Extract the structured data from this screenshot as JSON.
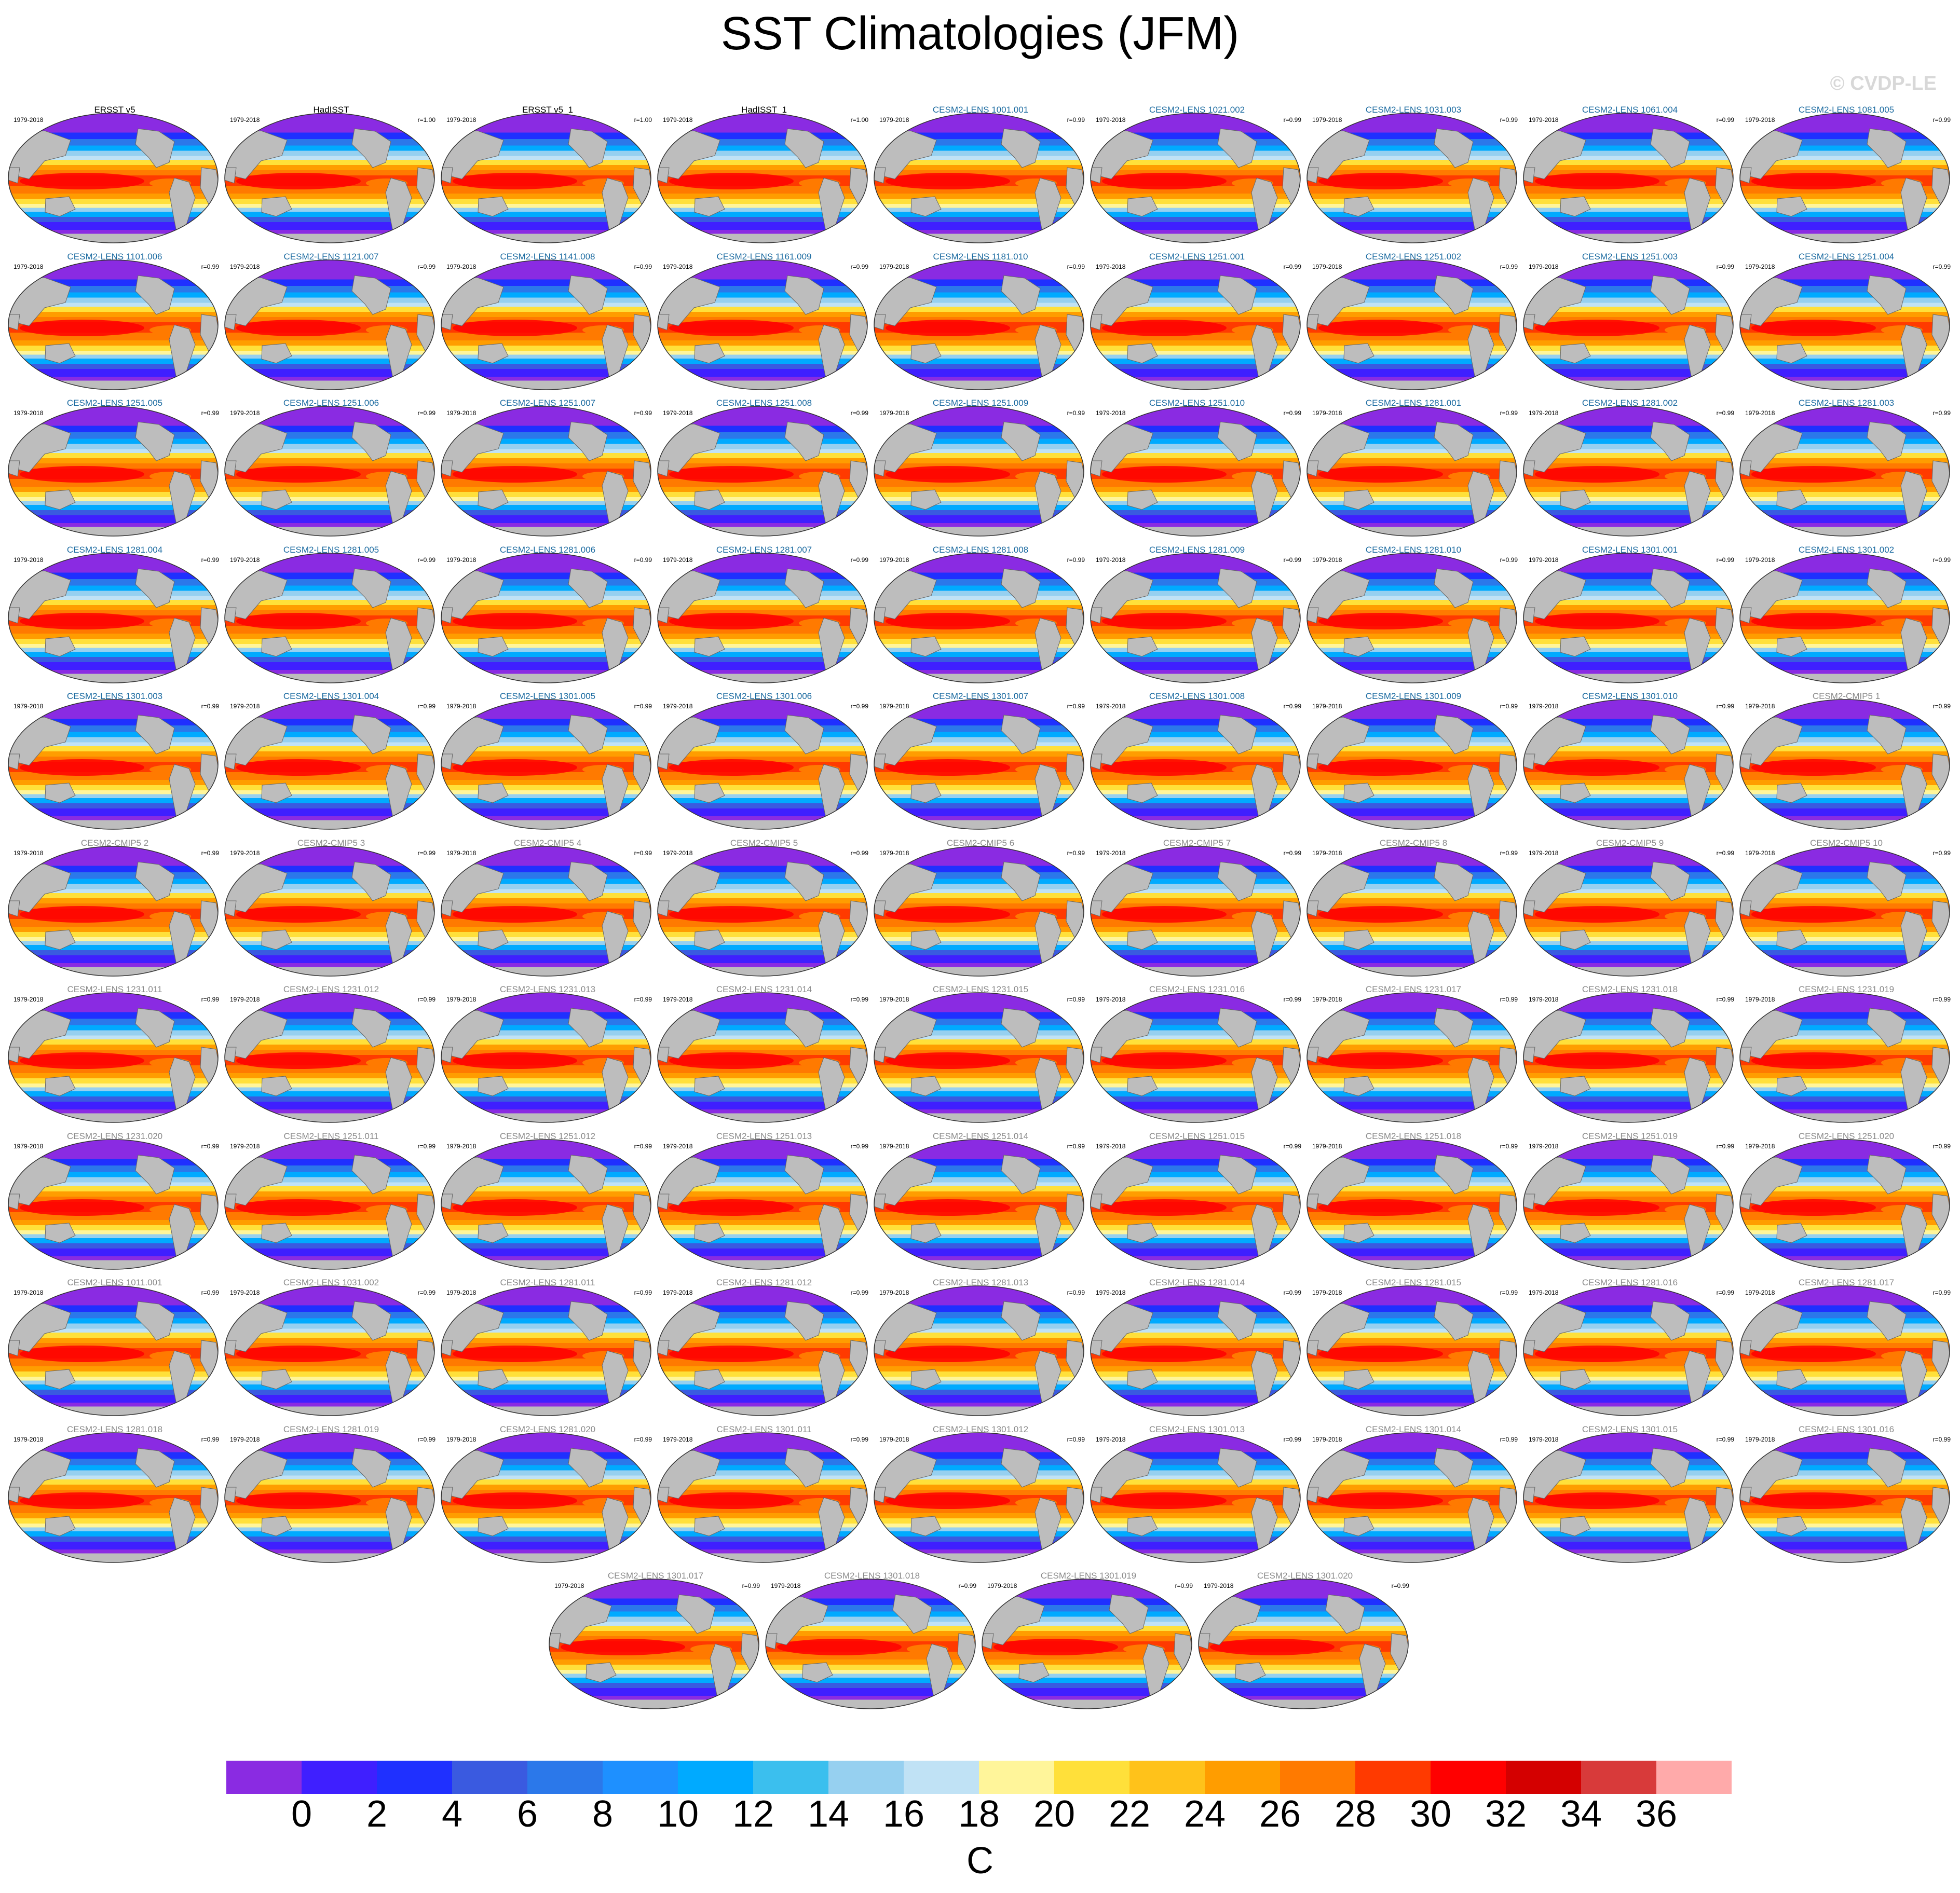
{
  "title": "SST Climatologies (JFM)",
  "watermark": "© CVDP-LE",
  "colors": {
    "obs_title": "#000000",
    "lens_title": "#1a6aa0",
    "other_title": "#8a8a8a",
    "land": "#bdbdbd",
    "levels": [
      "#8a2be2",
      "#3f1fff",
      "#1f30ff",
      "#3a5ae0",
      "#2b78ea",
      "#1e90ff",
      "#00aaff",
      "#3bbfee",
      "#96d0f0",
      "#c0e2f5",
      "#fff59a",
      "#ffe03a",
      "#ffc21a",
      "#ff9d00",
      "#ff7a00",
      "#ff3a00",
      "#ff0000",
      "#d40000",
      "#d83a3a",
      "#ffaaaa"
    ]
  },
  "colorbar": {
    "ticks": [
      "0",
      "2",
      "4",
      "6",
      "8",
      "10",
      "12",
      "14",
      "16",
      "18",
      "20",
      "22",
      "24",
      "26",
      "28",
      "30",
      "32",
      "34",
      "36"
    ],
    "unit": "C"
  },
  "panels": [
    {
      "title": "ERSST v5",
      "years": "1979-2018",
      "r": "",
      "style": "obs"
    },
    {
      "title": "HadISST",
      "years": "1979-2018",
      "r": "r=1.00",
      "style": "obs"
    },
    {
      "title": "ERSST v5_1",
      "years": "1979-2018",
      "r": "r=1.00",
      "style": "obs"
    },
    {
      "title": "HadISST_1",
      "years": "1979-2018",
      "r": "r=1.00",
      "style": "obs"
    },
    {
      "title": "CESM2-LENS 1001.001",
      "years": "1979-2018",
      "r": "r=0.99",
      "style": "lens"
    },
    {
      "title": "CESM2-LENS 1021.002",
      "years": "1979-2018",
      "r": "r=0.99",
      "style": "lens"
    },
    {
      "title": "CESM2-LENS 1031.003",
      "years": "1979-2018",
      "r": "r=0.99",
      "style": "lens"
    },
    {
      "title": "CESM2-LENS 1061.004",
      "years": "1979-2018",
      "r": "r=0.99",
      "style": "lens"
    },
    {
      "title": "CESM2-LENS 1081.005",
      "years": "1979-2018",
      "r": "r=0.99",
      "style": "lens"
    },
    {
      "title": "CESM2-LENS 1101.006",
      "years": "1979-2018",
      "r": "r=0.99",
      "style": "lens"
    },
    {
      "title": "CESM2-LENS 1121.007",
      "years": "1979-2018",
      "r": "r=0.99",
      "style": "lens"
    },
    {
      "title": "CESM2-LENS 1141.008",
      "years": "1979-2018",
      "r": "r=0.99",
      "style": "lens"
    },
    {
      "title": "CESM2-LENS 1161.009",
      "years": "1979-2018",
      "r": "r=0.99",
      "style": "lens"
    },
    {
      "title": "CESM2-LENS 1181.010",
      "years": "1979-2018",
      "r": "r=0.99",
      "style": "lens"
    },
    {
      "title": "CESM2-LENS 1251.001",
      "years": "1979-2018",
      "r": "r=0.99",
      "style": "lens"
    },
    {
      "title": "CESM2-LENS 1251.002",
      "years": "1979-2018",
      "r": "r=0.99",
      "style": "lens"
    },
    {
      "title": "CESM2-LENS 1251.003",
      "years": "1979-2018",
      "r": "r=0.99",
      "style": "lens"
    },
    {
      "title": "CESM2-LENS 1251.004",
      "years": "1979-2018",
      "r": "r=0.99",
      "style": "lens"
    },
    {
      "title": "CESM2-LENS 1251.005",
      "years": "1979-2018",
      "r": "r=0.99",
      "style": "lens"
    },
    {
      "title": "CESM2-LENS 1251.006",
      "years": "1979-2018",
      "r": "r=0.99",
      "style": "lens"
    },
    {
      "title": "CESM2-LENS 1251.007",
      "years": "1979-2018",
      "r": "r=0.99",
      "style": "lens"
    },
    {
      "title": "CESM2-LENS 1251.008",
      "years": "1979-2018",
      "r": "r=0.99",
      "style": "lens"
    },
    {
      "title": "CESM2-LENS 1251.009",
      "years": "1979-2018",
      "r": "r=0.99",
      "style": "lens"
    },
    {
      "title": "CESM2-LENS 1251.010",
      "years": "1979-2018",
      "r": "r=0.99",
      "style": "lens"
    },
    {
      "title": "CESM2-LENS 1281.001",
      "years": "1979-2018",
      "r": "r=0.99",
      "style": "lens"
    },
    {
      "title": "CESM2-LENS 1281.002",
      "years": "1979-2018",
      "r": "r=0.99",
      "style": "lens"
    },
    {
      "title": "CESM2-LENS 1281.003",
      "years": "1979-2018",
      "r": "r=0.99",
      "style": "lens"
    },
    {
      "title": "CESM2-LENS 1281.004",
      "years": "1979-2018",
      "r": "r=0.99",
      "style": "lens"
    },
    {
      "title": "CESM2-LENS 1281.005",
      "years": "1979-2018",
      "r": "r=0.99",
      "style": "lens"
    },
    {
      "title": "CESM2-LENS 1281.006",
      "years": "1979-2018",
      "r": "r=0.99",
      "style": "lens"
    },
    {
      "title": "CESM2-LENS 1281.007",
      "years": "1979-2018",
      "r": "r=0.99",
      "style": "lens"
    },
    {
      "title": "CESM2-LENS 1281.008",
      "years": "1979-2018",
      "r": "r=0.99",
      "style": "lens"
    },
    {
      "title": "CESM2-LENS 1281.009",
      "years": "1979-2018",
      "r": "r=0.99",
      "style": "lens"
    },
    {
      "title": "CESM2-LENS 1281.010",
      "years": "1979-2018",
      "r": "r=0.99",
      "style": "lens"
    },
    {
      "title": "CESM2-LENS 1301.001",
      "years": "1979-2018",
      "r": "r=0.99",
      "style": "lens"
    },
    {
      "title": "CESM2-LENS 1301.002",
      "years": "1979-2018",
      "r": "r=0.99",
      "style": "lens"
    },
    {
      "title": "CESM2-LENS 1301.003",
      "years": "1979-2018",
      "r": "r=0.99",
      "style": "lens"
    },
    {
      "title": "CESM2-LENS 1301.004",
      "years": "1979-2018",
      "r": "r=0.99",
      "style": "lens"
    },
    {
      "title": "CESM2-LENS 1301.005",
      "years": "1979-2018",
      "r": "r=0.99",
      "style": "lens"
    },
    {
      "title": "CESM2-LENS 1301.006",
      "years": "1979-2018",
      "r": "r=0.99",
      "style": "lens"
    },
    {
      "title": "CESM2-LENS 1301.007",
      "years": "1979-2018",
      "r": "r=0.99",
      "style": "lens"
    },
    {
      "title": "CESM2-LENS 1301.008",
      "years": "1979-2018",
      "r": "r=0.99",
      "style": "lens"
    },
    {
      "title": "CESM2-LENS 1301.009",
      "years": "1979-2018",
      "r": "r=0.99",
      "style": "lens"
    },
    {
      "title": "CESM2-LENS 1301.010",
      "years": "1979-2018",
      "r": "r=0.99",
      "style": "lens"
    },
    {
      "title": "CESM2-CMIP5 1",
      "years": "1979-2018",
      "r": "r=0.99",
      "style": "other"
    },
    {
      "title": "CESM2-CMIP5 2",
      "years": "1979-2018",
      "r": "r=0.99",
      "style": "other"
    },
    {
      "title": "CESM2-CMIP5 3",
      "years": "1979-2018",
      "r": "r=0.99",
      "style": "other"
    },
    {
      "title": "CESM2-CMIP5 4",
      "years": "1979-2018",
      "r": "r=0.99",
      "style": "other"
    },
    {
      "title": "CESM2-CMIP5 5",
      "years": "1979-2018",
      "r": "r=0.99",
      "style": "other"
    },
    {
      "title": "CESM2-CMIP5 6",
      "years": "1979-2018",
      "r": "r=0.99",
      "style": "other"
    },
    {
      "title": "CESM2-CMIP5 7",
      "years": "1979-2018",
      "r": "r=0.99",
      "style": "other"
    },
    {
      "title": "CESM2-CMIP5 8",
      "years": "1979-2018",
      "r": "r=0.99",
      "style": "other"
    },
    {
      "title": "CESM2-CMIP5 9",
      "years": "1979-2018",
      "r": "r=0.99",
      "style": "other"
    },
    {
      "title": "CESM2-CMIP5 10",
      "years": "1979-2018",
      "r": "r=0.99",
      "style": "other"
    },
    {
      "title": "CESM2-LENS 1231.011",
      "years": "1979-2018",
      "r": "r=0.99",
      "style": "other"
    },
    {
      "title": "CESM2-LENS 1231.012",
      "years": "1979-2018",
      "r": "r=0.99",
      "style": "other"
    },
    {
      "title": "CESM2-LENS 1231.013",
      "years": "1979-2018",
      "r": "r=0.99",
      "style": "other"
    },
    {
      "title": "CESM2-LENS 1231.014",
      "years": "1979-2018",
      "r": "r=0.99",
      "style": "other"
    },
    {
      "title": "CESM2-LENS 1231.015",
      "years": "1979-2018",
      "r": "r=0.99",
      "style": "other"
    },
    {
      "title": "CESM2-LENS 1231.016",
      "years": "1979-2018",
      "r": "r=0.99",
      "style": "other"
    },
    {
      "title": "CESM2-LENS 1231.017",
      "years": "1979-2018",
      "r": "r=0.99",
      "style": "other"
    },
    {
      "title": "CESM2-LENS 1231.018",
      "years": "1979-2018",
      "r": "r=0.99",
      "style": "other"
    },
    {
      "title": "CESM2-LENS 1231.019",
      "years": "1979-2018",
      "r": "r=0.99",
      "style": "other"
    },
    {
      "title": "CESM2-LENS 1231.020",
      "years": "1979-2018",
      "r": "r=0.99",
      "style": "other"
    },
    {
      "title": "CESM2-LENS 1251.011",
      "years": "1979-2018",
      "r": "r=0.99",
      "style": "other"
    },
    {
      "title": "CESM2-LENS 1251.012",
      "years": "1979-2018",
      "r": "r=0.99",
      "style": "other"
    },
    {
      "title": "CESM2-LENS 1251.013",
      "years": "1979-2018",
      "r": "r=0.99",
      "style": "other"
    },
    {
      "title": "CESM2-LENS 1251.014",
      "years": "1979-2018",
      "r": "r=0.99",
      "style": "other"
    },
    {
      "title": "CESM2-LENS 1251.015",
      "years": "1979-2018",
      "r": "r=0.99",
      "style": "other"
    },
    {
      "title": "CESM2-LENS 1251.018",
      "years": "1979-2018",
      "r": "r=0.99",
      "style": "other"
    },
    {
      "title": "CESM2-LENS 1251.019",
      "years": "1979-2018",
      "r": "r=0.99",
      "style": "other"
    },
    {
      "title": "CESM2-LENS 1251.020",
      "years": "1979-2018",
      "r": "r=0.99",
      "style": "other"
    },
    {
      "title": "CESM2-LENS 1011.001",
      "years": "1979-2018",
      "r": "r=0.99",
      "style": "other"
    },
    {
      "title": "CESM2-LENS 1031.002",
      "years": "1979-2018",
      "r": "r=0.99",
      "style": "other"
    },
    {
      "title": "CESM2-LENS 1281.011",
      "years": "1979-2018",
      "r": "r=0.99",
      "style": "other"
    },
    {
      "title": "CESM2-LENS 1281.012",
      "years": "1979-2018",
      "r": "r=0.99",
      "style": "other"
    },
    {
      "title": "CESM2-LENS 1281.013",
      "years": "1979-2018",
      "r": "r=0.99",
      "style": "other"
    },
    {
      "title": "CESM2-LENS 1281.014",
      "years": "1979-2018",
      "r": "r=0.99",
      "style": "other"
    },
    {
      "title": "CESM2-LENS 1281.015",
      "years": "1979-2018",
      "r": "r=0.99",
      "style": "other"
    },
    {
      "title": "CESM2-LENS 1281.016",
      "years": "1979-2018",
      "r": "r=0.99",
      "style": "other"
    },
    {
      "title": "CESM2-LENS 1281.017",
      "years": "1979-2018",
      "r": "r=0.99",
      "style": "other"
    },
    {
      "title": "CESM2-LENS 1281.018",
      "years": "1979-2018",
      "r": "r=0.99",
      "style": "other"
    },
    {
      "title": "CESM2-LENS 1281.019",
      "years": "1979-2018",
      "r": "r=0.99",
      "style": "other"
    },
    {
      "title": "CESM2-LENS 1281.020",
      "years": "1979-2018",
      "r": "r=0.99",
      "style": "other"
    },
    {
      "title": "CESM2-LENS 1301.011",
      "years": "1979-2018",
      "r": "r=0.99",
      "style": "other"
    },
    {
      "title": "CESM2-LENS 1301.012",
      "years": "1979-2018",
      "r": "r=0.99",
      "style": "other"
    },
    {
      "title": "CESM2-LENS 1301.013",
      "years": "1979-2018",
      "r": "r=0.99",
      "style": "other"
    },
    {
      "title": "CESM2-LENS 1301.014",
      "years": "1979-2018",
      "r": "r=0.99",
      "style": "other"
    },
    {
      "title": "CESM2-LENS 1301.015",
      "years": "1979-2018",
      "r": "r=0.99",
      "style": "other"
    },
    {
      "title": "CESM2-LENS 1301.016",
      "years": "1979-2018",
      "r": "r=0.99",
      "style": "other"
    },
    {
      "title": "CESM2-LENS 1301.017",
      "years": "1979-2018",
      "r": "r=0.99",
      "style": "other"
    },
    {
      "title": "CESM2-LENS 1301.018",
      "years": "1979-2018",
      "r": "r=0.99",
      "style": "other"
    },
    {
      "title": "CESM2-LENS 1301.019",
      "years": "1979-2018",
      "r": "r=0.99",
      "style": "other"
    },
    {
      "title": "CESM2-LENS 1301.020",
      "years": "1979-2018",
      "r": "r=0.99",
      "style": "other"
    }
  ]
}
